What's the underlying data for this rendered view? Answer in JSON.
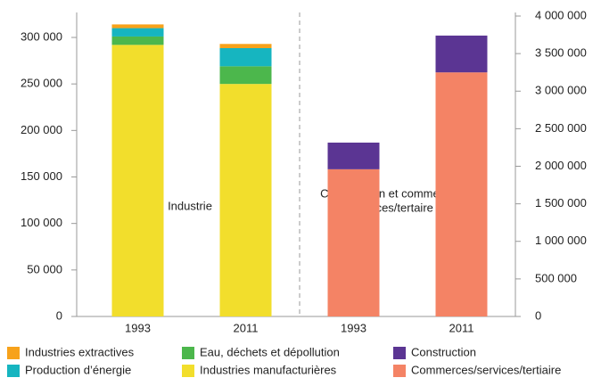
{
  "chart_data": {
    "type": "bar",
    "categories": [
      "1993",
      "2011",
      "1993",
      "2011"
    ],
    "annotations": [
      "Industrie",
      "Construction et commerces/",
      "services/tertaire"
    ],
    "series": [
      {
        "name": "Industries manufacturières",
        "color": "#f2de2c",
        "axis": "y",
        "values": [
          292000,
          250000,
          null,
          null
        ]
      },
      {
        "name": "Eau, déchets et dépollution",
        "color": "#4cb74c",
        "axis": "y",
        "values": [
          9000,
          19000,
          null,
          null
        ]
      },
      {
        "name": "Production d’énergie",
        "color": "#16b5c0",
        "axis": "y",
        "values": [
          9000,
          19500,
          null,
          null
        ]
      },
      {
        "name": "Industries extractives",
        "color": "#f7a21b",
        "axis": "y",
        "values": [
          4000,
          4500,
          null,
          null
        ]
      },
      {
        "name": "Commerces/services/tertiaire",
        "color": "#f48365",
        "axis": "y2",
        "values": [
          null,
          null,
          1960000,
          3250000
        ]
      },
      {
        "name": "Construction",
        "color": "#5b3593",
        "axis": "y2",
        "values": [
          null,
          null,
          355000,
          490000
        ]
      }
    ],
    "ylim": [
      0,
      323000
    ],
    "yticks": [
      0,
      {
        "value": 50000,
        "label": "50 000"
      },
      {
        "value": 100000,
        "label": "100 000"
      },
      {
        "value": 150000,
        "label": "150 000"
      },
      {
        "value": 200000,
        "label": "200 000"
      },
      {
        "value": 250000,
        "label": "250 000"
      },
      {
        "value": 300000,
        "label": "300 000"
      }
    ],
    "y2lim": [
      0,
      4000000
    ],
    "y2ticks": [
      0,
      {
        "value": 500000,
        "label": "500 000"
      },
      {
        "value": 1000000,
        "label": "1 000 000"
      },
      {
        "value": 1500000,
        "label": "1 500 000"
      },
      {
        "value": 2000000,
        "label": "2 000 000"
      },
      {
        "value": 2500000,
        "label": "2 500 000"
      },
      {
        "value": 3000000,
        "label": "3 000 000"
      },
      {
        "value": 3500000,
        "label": "3 500 000"
      },
      {
        "value": 4000000,
        "label": "4 000 000"
      }
    ],
    "grid": false
  }
}
